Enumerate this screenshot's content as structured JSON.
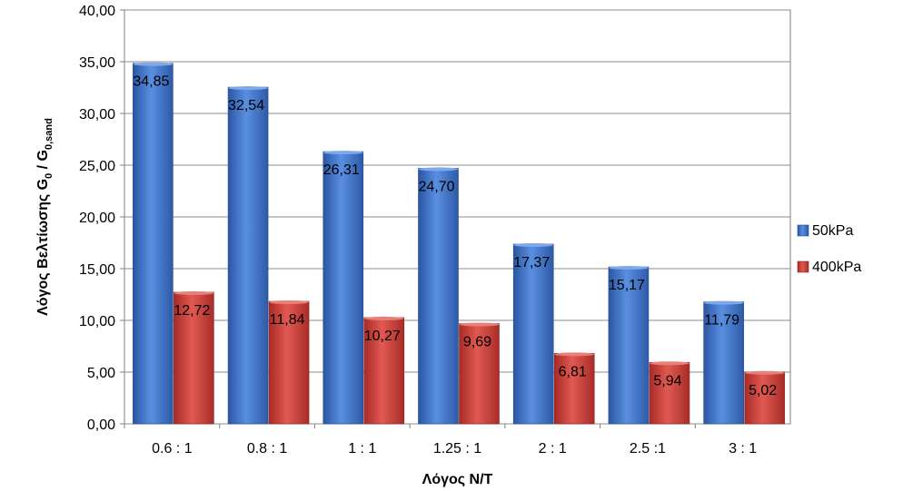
{
  "chart_data": {
    "type": "bar",
    "categories": [
      "0.6 : 1",
      "0.8 : 1",
      "1 : 1",
      "1.25 : 1",
      "2 : 1",
      "2.5 :1",
      "3 : 1"
    ],
    "series": [
      {
        "name": "50kPa",
        "values": [
          34.85,
          32.54,
          26.31,
          24.7,
          17.37,
          15.17,
          11.79
        ],
        "labels": [
          "34,85",
          "32,54",
          "26,31",
          "24,70",
          "17,37",
          "15,17",
          "11,79"
        ],
        "color": "#3a6fc4"
      },
      {
        "name": "400kPa",
        "values": [
          12.72,
          11.84,
          10.27,
          9.69,
          6.81,
          5.94,
          5.02
        ],
        "labels": [
          "12,72",
          "11,84",
          "10,27",
          "9,69",
          "6,81",
          "5,94",
          "5,02"
        ],
        "color": "#c83a35"
      }
    ],
    "xlabel": "Λόγος N/T",
    "ylabel": "Λόγος Βελτίωσης G",
    "ylabel_parts": [
      "Λόγος Βελτίωσης G",
      "0",
      " / G",
      "0,sand"
    ],
    "ylim": [
      0,
      40
    ],
    "yticks": [
      "0,00",
      "5,00",
      "10,00",
      "15,00",
      "20,00",
      "25,00",
      "30,00",
      "35,00",
      "40,00"
    ],
    "ytick_values": [
      0,
      5,
      10,
      15,
      20,
      25,
      30,
      35,
      40
    ],
    "grid": true,
    "legend_position": "right"
  }
}
